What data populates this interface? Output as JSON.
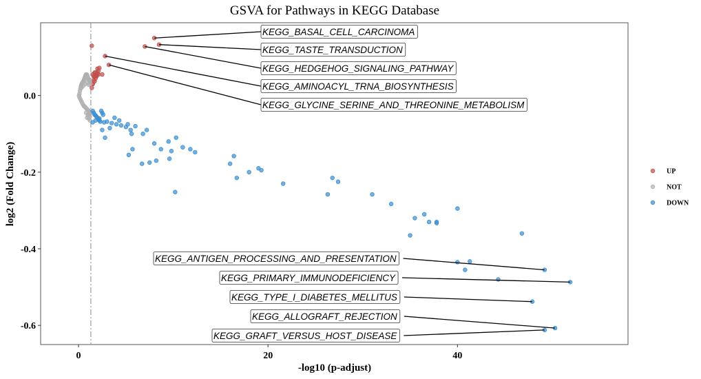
{
  "chart_data": {
    "type": "scatter",
    "title": "GSVA for Pathways in KEGG Database",
    "xlabel": "-log10 (p-adjust)",
    "ylabel": "log2 (Fold Change)",
    "xlim": [
      -4,
      58
    ],
    "ylim": [
      -0.65,
      0.19
    ],
    "xticks": [
      0,
      20,
      40
    ],
    "yticks": [
      0.0,
      -0.2,
      -0.4,
      -0.6
    ],
    "ytick_labels": [
      "0.0",
      "-0.2",
      "-0.4",
      "-0.6"
    ],
    "threshold_x": 1.3,
    "legend_position": "right",
    "grid": false,
    "series": [
      {
        "name": "UP",
        "color": "#c0504d",
        "x": [
          1.4,
          1.5,
          1.6,
          1.7,
          1.8,
          1.9,
          2.0,
          2.1,
          1.5,
          1.6,
          1.7,
          1.8,
          1.9,
          2.0,
          2.1,
          2.2,
          1.5,
          1.7,
          2.5,
          1.4,
          8.0,
          7.0,
          8.5,
          2.8,
          3.2
        ],
        "y": [
          0.02,
          0.03,
          0.04,
          0.05,
          0.06,
          0.05,
          0.07,
          0.055,
          0.055,
          0.05,
          0.06,
          0.045,
          0.052,
          0.058,
          0.064,
          0.072,
          0.03,
          0.037,
          0.055,
          0.13,
          0.15,
          0.128,
          0.133,
          0.103,
          0.08
        ]
      },
      {
        "name": "NOT",
        "color": "#b0b0b0",
        "x": [
          0.05,
          0.1,
          0.15,
          0.2,
          0.25,
          0.3,
          0.35,
          0.4,
          0.45,
          0.5,
          0.55,
          0.6,
          0.65,
          0.7,
          0.75,
          0.8,
          0.85,
          0.9,
          0.95,
          1.0,
          1.05,
          1.1,
          1.15,
          1.2,
          0.1,
          0.2,
          0.3,
          0.4,
          0.5,
          0.6,
          0.7,
          0.8,
          0.9,
          1.0,
          1.1,
          1.2,
          0.3,
          0.5,
          0.7,
          0.9,
          1.1,
          1.25,
          0.8,
          1.0,
          1.2,
          0.9,
          1.1,
          1.2,
          1.0,
          1.2
        ],
        "y": [
          0.0,
          0.005,
          0.012,
          0.018,
          0.024,
          0.028,
          0.031,
          0.033,
          0.035,
          0.037,
          0.04,
          0.043,
          0.046,
          0.05,
          0.053,
          0.055,
          0.055,
          0.054,
          0.05,
          0.046,
          0.042,
          0.04,
          0.038,
          0.036,
          -0.005,
          -0.01,
          -0.015,
          -0.02,
          -0.025,
          -0.028,
          -0.03,
          -0.033,
          -0.036,
          -0.038,
          -0.04,
          -0.042,
          0.02,
          0.025,
          0.03,
          0.034,
          0.028,
          0.03,
          -0.045,
          -0.05,
          -0.055,
          -0.058,
          -0.06,
          -0.065,
          -0.052,
          -0.047
        ]
      },
      {
        "name": "DOWN",
        "color": "#3a8fd0",
        "x": [
          1.5,
          1.6,
          1.7,
          1.8,
          1.9,
          2.0,
          2.1,
          2.2,
          2.3,
          2.4,
          2.5,
          2.6,
          1.5,
          1.8,
          2.2,
          2.7,
          3.0,
          3.5,
          4.0,
          4.5,
          5.0,
          5.5,
          6.0,
          3.8,
          4.3,
          5.2,
          2.5,
          2.8,
          3.3,
          5.6,
          6.8,
          7.2,
          8.0,
          8.7,
          9.5,
          10.3,
          9.8,
          11.0,
          11.8,
          12.3,
          5.3,
          5.7,
          6.7,
          7.5,
          8.2,
          9.6,
          10.2,
          16.0,
          16.7,
          16.4,
          18.0,
          19.0,
          19.3,
          21.6,
          26.3,
          26.8,
          27.4,
          31.0,
          33.0,
          35.0,
          35.5,
          36.5,
          37.0,
          37.8,
          37.8,
          40.0,
          46.8,
          40.0,
          40.8,
          41.3,
          44.3,
          49.2,
          51.9,
          47.9,
          49.2,
          50.3
        ],
        "y": [
          -0.04,
          -0.045,
          -0.05,
          -0.052,
          -0.055,
          -0.058,
          -0.062,
          -0.065,
          -0.068,
          -0.04,
          -0.045,
          -0.05,
          -0.07,
          -0.065,
          -0.06,
          -0.07,
          -0.068,
          -0.072,
          -0.075,
          -0.078,
          -0.082,
          -0.09,
          -0.08,
          -0.058,
          -0.065,
          -0.075,
          -0.09,
          -0.11,
          -0.085,
          -0.1,
          -0.1,
          -0.09,
          -0.125,
          -0.14,
          -0.12,
          -0.11,
          -0.145,
          -0.135,
          -0.14,
          -0.148,
          -0.155,
          -0.14,
          -0.178,
          -0.175,
          -0.17,
          -0.165,
          -0.252,
          -0.178,
          -0.215,
          -0.158,
          -0.2,
          -0.19,
          -0.195,
          -0.23,
          -0.258,
          -0.215,
          -0.225,
          -0.258,
          -0.283,
          -0.365,
          -0.32,
          -0.31,
          -0.33,
          -0.33,
          -0.333,
          -0.295,
          -0.36,
          -0.435,
          -0.455,
          -0.433,
          -0.48,
          -0.455,
          -0.487,
          -0.538,
          -0.612,
          -0.607
        ]
      }
    ],
    "annotations": [
      {
        "label": "KEGG_BASAL_CELL_CARCINOMA",
        "x": 8.0,
        "y": 0.15
      },
      {
        "label": "KEGG_TASTE_TRANSDUCTION",
        "x": 8.5,
        "y": 0.133
      },
      {
        "label": "KEGG_HEDGEHOG_SIGNALING_PATHWAY",
        "x": 7.0,
        "y": 0.128
      },
      {
        "label": "KEGG_AMINOACYL_TRNA_BIOSYNTHESIS",
        "x": 2.8,
        "y": 0.103
      },
      {
        "label": "KEGG_GLYCINE_SERINE_AND_THREONINE_METABOLISM",
        "x": 3.2,
        "y": 0.08
      },
      {
        "label": "KEGG_ANTIGEN_PROCESSING_AND_PRESENTATION",
        "x": 49.2,
        "y": -0.455
      },
      {
        "label": "KEGG_PRIMARY_IMMUNODEFICIENCY",
        "x": 51.9,
        "y": -0.487
      },
      {
        "label": "KEGG_TYPE_I_DIABETES_MELLITUS",
        "x": 47.9,
        "y": -0.538
      },
      {
        "label": "KEGG_ALLOGRAFT_REJECTION",
        "x": 50.3,
        "y": -0.607
      },
      {
        "label": "KEGG_GRAFT_VERSUS_HOST_DISEASE",
        "x": 49.2,
        "y": -0.612
      }
    ]
  }
}
